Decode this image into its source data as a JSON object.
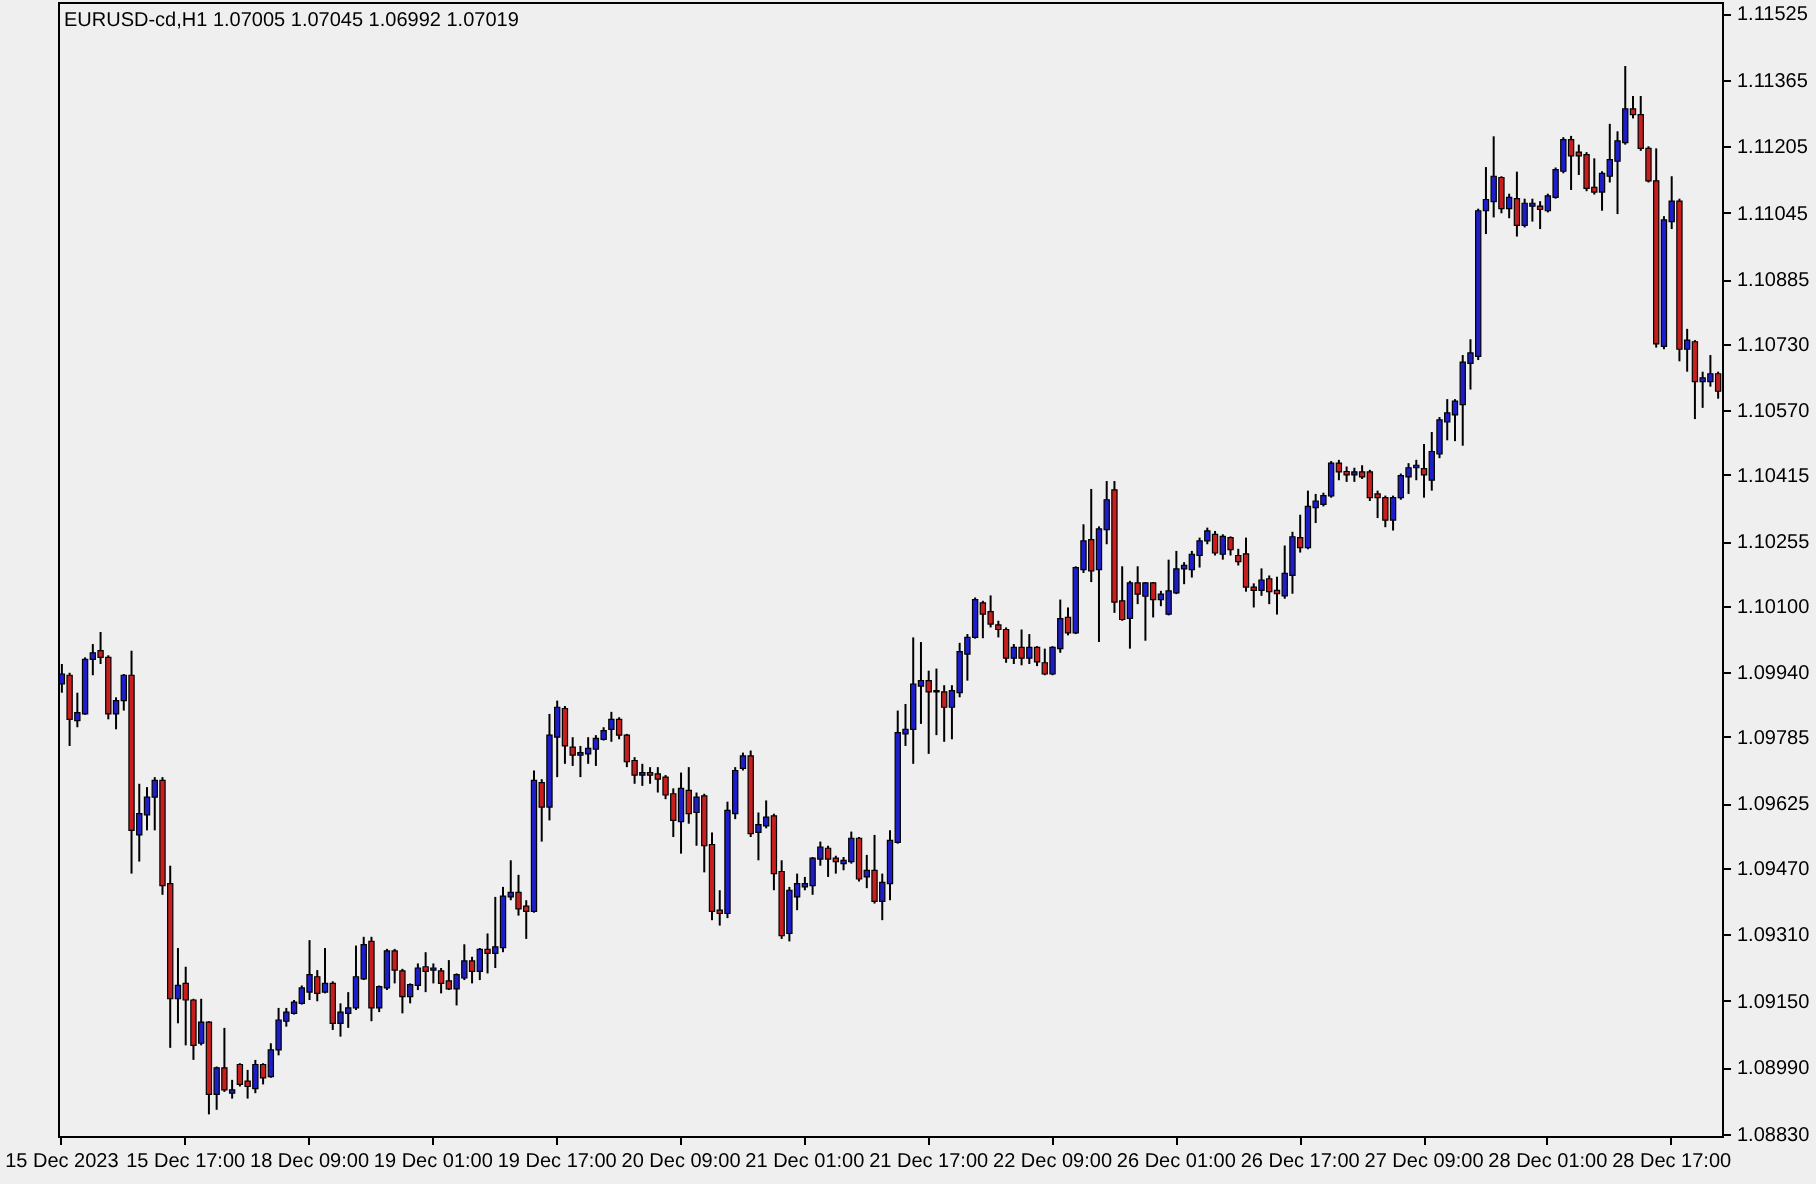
{
  "chart_data": {
    "type": "candlestick",
    "title": "EURUSD-cd,H1 1.07005 1.07045 1.06992 1.07019",
    "categories": [
      "15 Dec 2023",
      null,
      null,
      null,
      null,
      null,
      null,
      null,
      null,
      null,
      null,
      null,
      null,
      null,
      null,
      null,
      "15 Dec 17:00",
      null,
      null,
      null,
      null,
      null,
      null,
      null,
      null,
      null,
      null,
      null,
      null,
      null,
      null,
      null,
      "18 Dec 09:00",
      null,
      null,
      null,
      null,
      null,
      null,
      null,
      null,
      null,
      null,
      null,
      null,
      null,
      null,
      null,
      "19 Dec 01:00",
      null,
      null,
      null,
      null,
      null,
      null,
      null,
      null,
      null,
      null,
      null,
      null,
      null,
      null,
      null,
      "19 Dec 17:00",
      null,
      null,
      null,
      null,
      null,
      null,
      null,
      null,
      null,
      null,
      null,
      null,
      null,
      null,
      null,
      "20 Dec 09:00",
      null,
      null,
      null,
      null,
      null,
      null,
      null,
      null,
      null,
      null,
      null,
      null,
      null,
      null,
      null,
      "21 Dec 01:00",
      null,
      null,
      null,
      null,
      null,
      null,
      null,
      null,
      null,
      null,
      null,
      null,
      null,
      null,
      null,
      "21 Dec 17:00",
      null,
      null,
      null,
      null,
      null,
      null,
      null,
      null,
      null,
      null,
      null,
      null,
      null,
      null,
      null,
      "22 Dec 09:00",
      null,
      null,
      null,
      null,
      null,
      null,
      null,
      null,
      null,
      null,
      null,
      null,
      null,
      null,
      null,
      "26 Dec 01:00",
      null,
      null,
      null,
      null,
      null,
      null,
      null,
      null,
      null,
      null,
      null,
      null,
      null,
      null,
      null,
      "26 Dec 17:00",
      null,
      null,
      null,
      null,
      null,
      null,
      null,
      null,
      null,
      null,
      null,
      null,
      null,
      null,
      null,
      "27 Dec 09:00",
      null,
      null,
      null,
      null,
      null,
      null,
      null,
      null,
      null,
      null,
      null,
      null,
      null,
      null,
      null,
      "28 Dec 01:00",
      null,
      null,
      null,
      null,
      null,
      null,
      null,
      null,
      null,
      null,
      null,
      null,
      null,
      null,
      null,
      "28 Dec 17:00",
      null,
      null,
      null,
      null,
      null,
      null
    ],
    "ohlc": [
      [
        1.09912,
        1.0996,
        1.09891,
        1.09936
      ],
      [
        1.09933,
        1.09939,
        1.09763,
        1.09827
      ],
      [
        1.09824,
        1.09891,
        1.09808,
        1.09843
      ],
      [
        1.0984,
        1.09976,
        1.09838,
        1.09971
      ],
      [
        1.09971,
        1.10008,
        1.09933,
        1.09987
      ],
      [
        1.09992,
        1.10037,
        1.0996,
        1.09976
      ],
      [
        1.09976,
        1.09981,
        1.09827,
        1.0984
      ],
      [
        1.0984,
        1.0988,
        1.09803,
        1.09872
      ],
      [
        1.09872,
        1.09936,
        1.09848,
        1.09933
      ],
      [
        1.09933,
        1.09992,
        1.09456,
        1.0956
      ],
      [
        1.09549,
        1.09672,
        1.09485,
        1.096
      ],
      [
        1.09597,
        1.09664,
        1.0956,
        1.0964
      ],
      [
        1.0964,
        1.09688,
        1.0956,
        1.0968
      ],
      [
        1.0968,
        1.09688,
        1.09405,
        1.09427
      ],
      [
        1.09432,
        1.09475,
        1.09037,
        1.09155
      ],
      [
        1.09155,
        1.09277,
        1.09096,
        1.09187
      ],
      [
        1.09192,
        1.09232,
        1.09043,
        1.09152
      ],
      [
        1.09152,
        1.09155,
        1.09008,
        1.09043
      ],
      [
        1.09048,
        1.09155,
        1.09043,
        1.09099
      ],
      [
        1.09099,
        1.09101,
        1.08877,
        1.08925
      ],
      [
        1.08925,
        1.08992,
        1.08888,
        1.08989
      ],
      [
        1.08989,
        1.09085,
        1.08931,
        1.08936
      ],
      [
        1.08928,
        1.0896,
        1.08915,
        1.08936
      ],
      [
        1.08997,
        1.09,
        1.08944,
        1.08949
      ],
      [
        1.08957,
        1.08984,
        1.08915,
        1.08944
      ],
      [
        1.08939,
        1.09008,
        1.08928,
        1.08997
      ],
      [
        1.08997,
        1.09,
        1.08949,
        1.08965
      ],
      [
        1.08968,
        1.09048,
        1.08965,
        1.09032
      ],
      [
        1.09032,
        1.09133,
        1.09019,
        1.09104
      ],
      [
        1.09101,
        1.09133,
        1.09088,
        1.09123
      ],
      [
        1.0912,
        1.09152,
        1.09117,
        1.09147
      ],
      [
        1.09144,
        1.09187,
        1.09141,
        1.09181
      ],
      [
        1.09171,
        1.09296,
        1.09152,
        1.09213
      ],
      [
        1.09208,
        1.09224,
        1.09149,
        1.09168
      ],
      [
        1.09171,
        1.09277,
        1.09168,
        1.09192
      ],
      [
        1.09192,
        1.09197,
        1.0908,
        1.09096
      ],
      [
        1.09096,
        1.09144,
        1.09064,
        1.09123
      ],
      [
        1.0912,
        1.09171,
        1.09085,
        1.09133
      ],
      [
        1.09133,
        1.09283,
        1.09128,
        1.09208
      ],
      [
        1.09203,
        1.09304,
        1.092,
        1.09285
      ],
      [
        1.09293,
        1.09304,
        1.09101,
        1.09133
      ],
      [
        1.09133,
        1.09187,
        1.09123,
        1.09184
      ],
      [
        1.09181,
        1.09275,
        1.09176,
        1.0927
      ],
      [
        1.0927,
        1.09275,
        1.09192,
        1.09224
      ],
      [
        1.09222,
        1.09227,
        1.0912,
        1.0916
      ],
      [
        1.0916,
        1.09192,
        1.09144,
        1.09189
      ],
      [
        1.09187,
        1.0924,
        1.09176,
        1.09229
      ],
      [
        1.09232,
        1.09267,
        1.09171,
        1.09221
      ],
      [
        1.09224,
        1.0924,
        1.09192,
        1.09229
      ],
      [
        1.09222,
        1.09229,
        1.09168,
        1.09192
      ],
      [
        1.09198,
        1.09248,
        1.09176,
        1.09179
      ],
      [
        1.09179,
        1.09216,
        1.09139,
        1.09213
      ],
      [
        1.09205,
        1.09286,
        1.092,
        1.09246
      ],
      [
        1.09246,
        1.09256,
        1.09192,
        1.09221
      ],
      [
        1.09221,
        1.09277,
        1.092,
        1.09274
      ],
      [
        1.09274,
        1.09312,
        1.09216,
        1.09264
      ],
      [
        1.09264,
        1.094,
        1.09229,
        1.0928
      ],
      [
        1.09278,
        1.09424,
        1.09267,
        1.09402
      ],
      [
        1.094,
        1.09488,
        1.09392,
        1.09411
      ],
      [
        1.09411,
        1.09453,
        1.09355,
        1.09371
      ],
      [
        1.09378,
        1.09392,
        1.09299,
        1.09365
      ],
      [
        1.09365,
        1.09704,
        1.09362,
        1.0968
      ],
      [
        1.09675,
        1.09683,
        1.09533,
        1.09616
      ],
      [
        1.09616,
        1.0984,
        1.09584,
        1.09789
      ],
      [
        1.09784,
        1.09872,
        1.09688,
        1.09856
      ],
      [
        1.09853,
        1.09859,
        1.0972,
        1.09763
      ],
      [
        1.0976,
        1.09784,
        1.09715,
        1.09741
      ],
      [
        1.09741,
        1.09763,
        1.09688,
        1.09747
      ],
      [
        1.09744,
        1.09784,
        1.0972,
        1.09757
      ],
      [
        1.09755,
        1.09789,
        1.09715,
        1.09781
      ],
      [
        1.09779,
        1.09808,
        1.09776,
        1.098
      ],
      [
        1.09803,
        1.09845,
        1.09773,
        1.09827
      ],
      [
        1.09827,
        1.09832,
        1.09779,
        1.09789
      ],
      [
        1.09789,
        1.09792,
        1.09712,
        1.09725
      ],
      [
        1.09728,
        1.09736,
        1.09672,
        1.09693
      ],
      [
        1.09693,
        1.0972,
        1.09667,
        1.09699
      ],
      [
        1.09699,
        1.09712,
        1.09672,
        1.09693
      ],
      [
        1.09696,
        1.09712,
        1.09651,
        1.09683
      ],
      [
        1.09688,
        1.09693,
        1.09635,
        1.09645
      ],
      [
        1.09648,
        1.09661,
        1.09544,
        1.09584
      ],
      [
        1.09581,
        1.09699,
        1.09504,
        1.09661
      ],
      [
        1.09656,
        1.09712,
        1.09576,
        1.096
      ],
      [
        1.09603,
        1.09651,
        1.09523,
        1.0964
      ],
      [
        1.09643,
        1.09648,
        1.09459,
        1.09523
      ],
      [
        1.09526,
        1.09555,
        1.09344,
        1.09365
      ],
      [
        1.09368,
        1.09416,
        1.09331,
        1.0936
      ],
      [
        1.0936,
        1.09629,
        1.09349,
        1.09608
      ],
      [
        1.096,
        1.09712,
        1.09587,
        1.09704
      ],
      [
        1.09709,
        1.09747,
        1.09704,
        1.09739
      ],
      [
        1.09739,
        1.09752,
        1.09544,
        1.09552
      ],
      [
        1.09555,
        1.09603,
        1.09488,
        1.09574
      ],
      [
        1.09571,
        1.09632,
        1.09565,
        1.09592
      ],
      [
        1.09595,
        1.096,
        1.09416,
        1.09456
      ],
      [
        1.09461,
        1.09488,
        1.09299,
        1.09307
      ],
      [
        1.09312,
        1.09424,
        1.09293,
        1.09416
      ],
      [
        1.094,
        1.09456,
        1.09368,
        1.09432
      ],
      [
        1.09424,
        1.09448,
        1.09416,
        1.09432
      ],
      [
        1.09427,
        1.09496,
        1.09405,
        1.09493
      ],
      [
        1.09491,
        1.09533,
        1.09475,
        1.0952
      ],
      [
        1.09517,
        1.09523,
        1.09448,
        1.09491
      ],
      [
        1.09493,
        1.09499,
        1.09456,
        1.09485
      ],
      [
        1.0948,
        1.09496,
        1.09464,
        1.09488
      ],
      [
        1.09485,
        1.09557,
        1.0948,
        1.09541
      ],
      [
        1.09541,
        1.09544,
        1.09437,
        1.09443
      ],
      [
        1.09448,
        1.09501,
        1.09421,
        1.09464
      ],
      [
        1.09464,
        1.09549,
        1.09384,
        1.09389
      ],
      [
        1.09389,
        1.09456,
        1.09344,
        1.09435
      ],
      [
        1.09432,
        1.0956,
        1.09392,
        1.09536
      ],
      [
        1.09531,
        1.09848,
        1.09528,
        1.09795
      ],
      [
        1.09792,
        1.09864,
        1.09763,
        1.09803
      ],
      [
        1.09803,
        1.10024,
        1.0972,
        1.09912
      ],
      [
        1.09907,
        1.10013,
        1.09816,
        1.0992
      ],
      [
        1.0992,
        1.09944,
        1.09744,
        1.09893
      ],
      [
        1.09896,
        1.09949,
        1.09789,
        1.09893
      ],
      [
        1.09893,
        1.09909,
        1.09773,
        1.09856
      ],
      [
        1.09856,
        1.09909,
        1.09779,
        1.09896
      ],
      [
        1.09891,
        1.10011,
        1.0988,
        1.0999
      ],
      [
        1.09984,
        1.10032,
        1.0992,
        1.10024
      ],
      [
        1.10024,
        1.1012,
        1.10021,
        1.10115
      ],
      [
        1.10107,
        1.10112,
        1.10022,
        1.1008
      ],
      [
        1.10086,
        1.10125,
        1.10048,
        1.10056
      ],
      [
        1.10054,
        1.10064,
        1.10024,
        1.10043
      ],
      [
        1.10043,
        1.10048,
        1.09963,
        1.09974
      ],
      [
        1.09974,
        1.10008,
        1.0996,
        1.1
      ],
      [
        1.1,
        1.10043,
        1.09957,
        1.09974
      ],
      [
        1.09974,
        1.10032,
        1.0996,
        1.1
      ],
      [
        1.1,
        1.10003,
        1.09955,
        1.09965
      ],
      [
        1.09963,
        1.09997,
        1.09933,
        1.09936
      ],
      [
        1.09936,
        1.10003,
        1.09933,
        1.1
      ],
      [
        1.09997,
        1.10115,
        1.09987,
        1.10069
      ],
      [
        1.10072,
        1.10096,
        1.10029,
        1.10035
      ],
      [
        1.10035,
        1.10195,
        1.10032,
        1.10192
      ],
      [
        1.10187,
        1.10296,
        1.10179,
        1.10256
      ],
      [
        1.10259,
        1.10381,
        1.10157,
        1.10184
      ],
      [
        1.10187,
        1.10291,
        1.10013,
        1.10285
      ],
      [
        1.10283,
        1.104,
        1.10248,
        1.10355
      ],
      [
        1.10379,
        1.104,
        1.10083,
        1.10109
      ],
      [
        1.10112,
        1.10195,
        1.10064,
        1.10067
      ],
      [
        1.1007,
        1.1016,
        1.09997,
        1.10155
      ],
      [
        1.10155,
        1.10195,
        1.10104,
        1.10128
      ],
      [
        1.10123,
        1.10157,
        1.10016,
        1.10155
      ],
      [
        1.10155,
        1.10157,
        1.10072,
        1.10115
      ],
      [
        1.10115,
        1.10136,
        1.10099,
        1.10128
      ],
      [
        1.1008,
        1.10211,
        1.10077,
        1.10136
      ],
      [
        1.10131,
        1.10232,
        1.10128,
        1.10189
      ],
      [
        1.10189,
        1.10205,
        1.10152,
        1.10197
      ],
      [
        1.10187,
        1.10232,
        1.10168,
        1.10224
      ],
      [
        1.10221,
        1.10264,
        1.10192,
        1.10256
      ],
      [
        1.10256,
        1.10288,
        1.10248,
        1.1028
      ],
      [
        1.10272,
        1.1028,
        1.10221,
        1.10227
      ],
      [
        1.10224,
        1.10272,
        1.10211,
        1.10267
      ],
      [
        1.10264,
        1.10267,
        1.10221,
        1.10235
      ],
      [
        1.10221,
        1.10237,
        1.10197,
        1.10206
      ],
      [
        1.10225,
        1.10264,
        1.10134,
        1.10145
      ],
      [
        1.10145,
        1.10154,
        1.10096,
        1.10137
      ],
      [
        1.10137,
        1.1019,
        1.10124,
        1.10162
      ],
      [
        1.10165,
        1.10173,
        1.10104,
        1.10134
      ],
      [
        1.10137,
        1.1017,
        1.10079,
        1.10129
      ],
      [
        1.10124,
        1.10245,
        1.10117,
        1.10178
      ],
      [
        1.10173,
        1.10278,
        1.10129,
        1.10266
      ],
      [
        1.10264,
        1.10319,
        1.10228,
        1.1024
      ],
      [
        1.1024,
        1.10377,
        1.10236,
        1.10339
      ],
      [
        1.10336,
        1.10369,
        1.10299,
        1.10352
      ],
      [
        1.10344,
        1.10372,
        1.10339,
        1.10365
      ],
      [
        1.10364,
        1.10448,
        1.1036,
        1.10443
      ],
      [
        1.10443,
        1.10451,
        1.10402,
        1.10422
      ],
      [
        1.10423,
        1.10435,
        1.10398,
        1.10415
      ],
      [
        1.10415,
        1.10432,
        1.10398,
        1.10422
      ],
      [
        1.10422,
        1.10438,
        1.10405,
        1.1041
      ],
      [
        1.10422,
        1.10427,
        1.10352,
        1.1036
      ],
      [
        1.10369,
        1.10377,
        1.10311,
        1.1036
      ],
      [
        1.1036,
        1.10365,
        1.10289,
        1.10306
      ],
      [
        1.10306,
        1.10365,
        1.10281,
        1.1036
      ],
      [
        1.1036,
        1.10418,
        1.10355,
        1.10413
      ],
      [
        1.1041,
        1.10443,
        1.10369,
        1.10432
      ],
      [
        1.10432,
        1.10451,
        1.10402,
        1.10438
      ],
      [
        1.1043,
        1.10489,
        1.1036,
        1.10415
      ],
      [
        1.10402,
        1.10518,
        1.10377,
        1.10471
      ],
      [
        1.10465,
        1.10554,
        1.10455,
        1.10547
      ],
      [
        1.10542,
        1.10597,
        1.10498,
        1.10564
      ],
      [
        1.10559,
        1.10597,
        1.10496,
        1.10592
      ],
      [
        1.10584,
        1.10703,
        1.10485,
        1.10686
      ],
      [
        1.10683,
        1.10741,
        1.1062,
        1.10708
      ],
      [
        1.107,
        1.11055,
        1.10691,
        1.1105
      ],
      [
        1.1105,
        1.11155,
        1.10994,
        1.11077
      ],
      [
        1.11072,
        1.11229,
        1.11034,
        1.11133
      ],
      [
        1.1113,
        1.11133,
        1.11044,
        1.11055
      ],
      [
        1.11055,
        1.11091,
        1.11032,
        1.11082
      ],
      [
        1.11079,
        1.11144,
        1.10988,
        1.11015
      ],
      [
        1.11015,
        1.11079,
        1.1101,
        1.11068
      ],
      [
        1.11061,
        1.11079,
        1.11024,
        1.11068
      ],
      [
        1.11061,
        1.11073,
        1.11006,
        1.11053
      ],
      [
        1.1105,
        1.11091,
        1.11046,
        1.11086
      ],
      [
        1.11082,
        1.11154,
        1.11079,
        1.11149
      ],
      [
        1.11145,
        1.11227,
        1.1114,
        1.11221
      ],
      [
        1.11221,
        1.1123,
        1.111,
        1.11182
      ],
      [
        1.11191,
        1.11209,
        1.11136,
        1.11182
      ],
      [
        1.11185,
        1.11191,
        1.11097,
        1.11104
      ],
      [
        1.11106,
        1.11176,
        1.11089,
        1.11095
      ],
      [
        1.11095,
        1.11145,
        1.1105,
        1.1114
      ],
      [
        1.11133,
        1.11259,
        1.11118,
        1.11173
      ],
      [
        1.11169,
        1.11241,
        1.11042,
        1.11218
      ],
      [
        1.11214,
        1.11398,
        1.11209,
        1.11295
      ],
      [
        1.11295,
        1.11326,
        1.11272,
        1.11281
      ],
      [
        1.11281,
        1.11326,
        1.11194,
        1.112
      ],
      [
        1.112,
        1.11205,
        1.11118,
        1.11122
      ],
      [
        1.11122,
        1.112,
        1.10721,
        1.1073
      ],
      [
        1.10724,
        1.11037,
        1.10717,
        1.11028
      ],
      [
        1.11024,
        1.11133,
        1.11006,
        1.11073
      ],
      [
        1.11073,
        1.11079,
        1.10688,
        1.10717
      ],
      [
        1.10717,
        1.10766,
        1.10663,
        1.10739
      ],
      [
        1.10735,
        1.10739,
        1.10549,
        1.10639
      ],
      [
        1.10639,
        1.10663,
        1.10576,
        1.10648
      ],
      [
        1.10639,
        1.10703,
        1.10627,
        1.10658
      ],
      [
        1.10658,
        1.10663,
        1.10598,
        1.10616
      ]
    ],
    "colors": [
      "#1e1ec8",
      "#c81e1e",
      "#1e1ec8",
      "#1e1ec8",
      "#1e1ec8",
      "#c81e1e",
      "#c81e1e",
      "#1e1ec8",
      "#1e1ec8",
      "#c81e1e",
      "#1e1ec8",
      "#1e1ec8",
      "#1e1ec8",
      "#c81e1e",
      "#c81e1e",
      "#1e1ec8",
      "#c81e1e",
      "#c81e1e",
      "#1e1ec8",
      "#c81e1e",
      "#1e1ec8",
      "#c81e1e",
      "#1e1ec8",
      "#c81e1e",
      "#c81e1e",
      "#1e1ec8",
      "#c81e1e",
      "#1e1ec8",
      "#1e1ec8",
      "#1e1ec8",
      "#1e1ec8",
      "#1e1ec8",
      "#1e1ec8",
      "#c81e1e",
      "#1e1ec8",
      "#c81e1e",
      "#1e1ec8",
      "#1e1ec8",
      "#1e1ec8",
      "#1e1ec8",
      "#c81e1e",
      "#1e1ec8",
      "#1e1ec8",
      "#c81e1e",
      "#c81e1e",
      "#1e1ec8",
      "#1e1ec8",
      "#c81e1e",
      "#1e1ec8",
      "#c81e1e",
      "#c81e1e",
      "#1e1ec8",
      "#1e1ec8",
      "#c81e1e",
      "#1e1ec8",
      "#c81e1e",
      "#1e1ec8",
      "#1e1ec8",
      "#1e1ec8",
      "#c81e1e",
      "#c81e1e",
      "#1e1ec8",
      "#c81e1e",
      "#1e1ec8",
      "#1e1ec8",
      "#c81e1e",
      "#c81e1e",
      "#1e1ec8",
      "#1e1ec8",
      "#1e1ec8",
      "#1e1ec8",
      "#1e1ec8",
      "#c81e1e",
      "#c81e1e",
      "#c81e1e",
      "#1e1ec8",
      "#c81e1e",
      "#c81e1e",
      "#c81e1e",
      "#c81e1e",
      "#1e1ec8",
      "#c81e1e",
      "#1e1ec8",
      "#c81e1e",
      "#c81e1e",
      "#c81e1e",
      "#1e1ec8",
      "#1e1ec8",
      "#1e1ec8",
      "#c81e1e",
      "#1e1ec8",
      "#1e1ec8",
      "#c81e1e",
      "#c81e1e",
      "#1e1ec8",
      "#1e1ec8",
      "#1e1ec8",
      "#1e1ec8",
      "#1e1ec8",
      "#c81e1e",
      "#c81e1e",
      "#1e1ec8",
      "#1e1ec8",
      "#c81e1e",
      "#1e1ec8",
      "#c81e1e",
      "#1e1ec8",
      "#1e1ec8",
      "#1e1ec8",
      "#1e1ec8",
      "#1e1ec8",
      "#1e1ec8",
      "#c81e1e",
      "#c81e1e",
      "#c81e1e",
      "#1e1ec8",
      "#1e1ec8",
      "#1e1ec8",
      "#1e1ec8",
      "#c81e1e",
      "#c81e1e",
      "#c81e1e",
      "#c81e1e",
      "#1e1ec8",
      "#c81e1e",
      "#1e1ec8",
      "#c81e1e",
      "#c81e1e",
      "#1e1ec8",
      "#1e1ec8",
      "#c81e1e",
      "#1e1ec8",
      "#1e1ec8",
      "#c81e1e",
      "#1e1ec8",
      "#1e1ec8",
      "#c81e1e",
      "#c81e1e",
      "#1e1ec8",
      "#c81e1e",
      "#1e1ec8",
      "#c81e1e",
      "#1e1ec8",
      "#1e1ec8",
      "#1e1ec8",
      "#1e1ec8",
      "#1e1ec8",
      "#1e1ec8",
      "#1e1ec8",
      "#c81e1e",
      "#1e1ec8",
      "#c81e1e",
      "#c81e1e",
      "#c81e1e",
      "#c81e1e",
      "#1e1ec8",
      "#c81e1e",
      "#c81e1e",
      "#1e1ec8",
      "#1e1ec8",
      "#c81e1e",
      "#1e1ec8",
      "#1e1ec8",
      "#1e1ec8",
      "#1e1ec8",
      "#c81e1e",
      "#c81e1e",
      "#1e1ec8",
      "#c81e1e",
      "#c81e1e",
      "#c81e1e",
      "#c81e1e",
      "#1e1ec8",
      "#1e1ec8",
      "#1e1ec8",
      "#1e1ec8",
      "#c81e1e",
      "#1e1ec8",
      "#1e1ec8",
      "#1e1ec8",
      "#1e1ec8",
      "#1e1ec8",
      "#1e1ec8",
      "#1e1ec8",
      "#1e1ec8",
      "#1e1ec8",
      "#c81e1e",
      "#1e1ec8",
      "#c81e1e",
      "#1e1ec8",
      "#1e1ec8",
      "#c81e1e",
      "#1e1ec8",
      "#1e1ec8",
      "#1e1ec8",
      "#c81e1e",
      "#c81e1e",
      "#c81e1e",
      "#c81e1e",
      "#1e1ec8",
      "#1e1ec8",
      "#1e1ec8",
      "#1e1ec8",
      "#c81e1e",
      "#c81e1e",
      "#c81e1e",
      "#c81e1e",
      "#1e1ec8",
      "#1e1ec8",
      "#c81e1e",
      "#1e1ec8",
      "#c81e1e",
      "#1e1ec8",
      "#1e1ec8",
      "#c81e1e"
    ],
    "ylim": [
      1.08825,
      1.11552
    ],
    "yticks": [
      1.11525,
      1.11365,
      1.11205,
      1.11045,
      1.10885,
      {
        "value": 1.1073,
        "label": "1.10730"
      },
      {
        "value": 1.1057,
        "label": "1.10570"
      },
      1.10415,
      1.10255,
      {
        "value": 1.101,
        "label": "1.10100"
      },
      {
        "value": 1.0994,
        "label": "1.09940"
      },
      1.09785,
      1.09625,
      {
        "value": 1.0947,
        "label": "1.09470"
      },
      {
        "value": 1.0931,
        "label": "1.09310"
      },
      {
        "value": 1.0915,
        "label": "1.09150"
      },
      {
        "value": 1.0899,
        "label": "1.08990"
      },
      {
        "value": 1.0883,
        "label": "1.08830"
      }
    ]
  }
}
